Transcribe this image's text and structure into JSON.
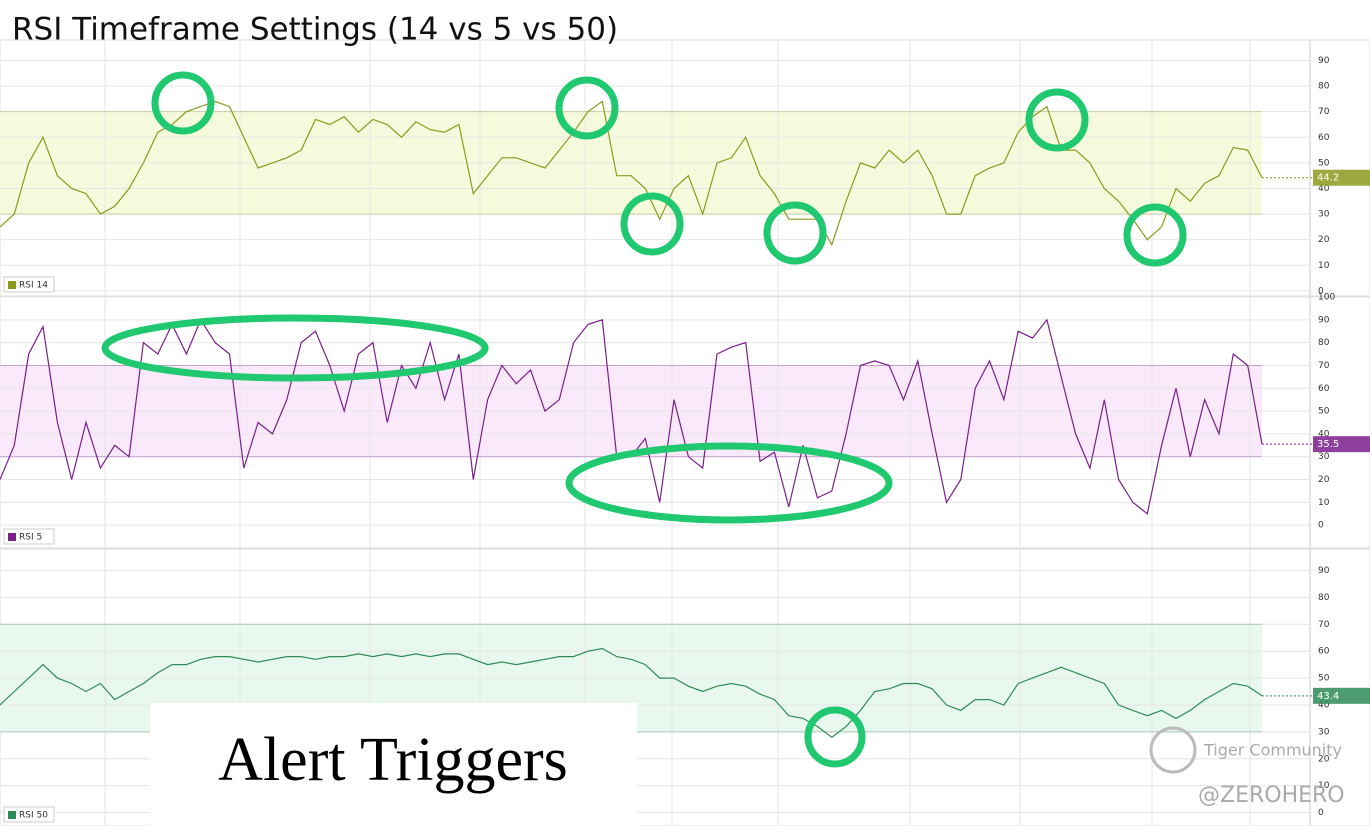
{
  "title": "RSI Timeframe Settings (14 vs 5 vs 50)",
  "annotation": "Alert Triggers",
  "watermark": [
    "Tiger Community",
    "@ZEROHERO"
  ],
  "chart_data": [
    {
      "type": "line",
      "ylim": [
        -2,
        98
      ],
      "yticks": [
        0,
        10,
        20,
        30,
        40,
        50,
        60,
        70,
        80,
        90
      ],
      "band": [
        30,
        70
      ],
      "band_color": "#f6fadd",
      "series": [
        {
          "name": "RSI 14",
          "color": "#8c9a1c",
          "last_value": 44.2,
          "values": [
            25,
            30,
            50,
            60,
            45,
            40,
            38,
            30,
            33,
            40,
            50,
            62,
            65,
            70,
            72,
            74,
            72,
            60,
            48,
            50,
            52,
            55,
            67,
            65,
            68,
            62,
            67,
            65,
            60,
            66,
            63,
            62,
            65,
            38,
            45,
            52,
            52,
            50,
            48,
            55,
            62,
            70,
            74,
            45,
            45,
            40,
            28,
            40,
            45,
            30,
            50,
            52,
            60,
            45,
            38,
            28,
            28,
            28,
            18,
            35,
            50,
            48,
            55,
            50,
            55,
            45,
            30,
            30,
            45,
            48,
            50,
            62,
            68,
            72,
            55,
            55,
            50,
            40,
            35,
            28,
            20,
            25,
            40,
            35,
            42,
            45,
            56,
            55,
            44.2
          ]
        }
      ]
    },
    {
      "type": "line",
      "ylim": [
        -10,
        100
      ],
      "yticks": [
        0,
        10,
        20,
        30,
        40,
        50,
        60,
        70,
        80,
        90,
        100
      ],
      "band": [
        30,
        70
      ],
      "band_color": "#f9e9fa",
      "series": [
        {
          "name": "RSI 5",
          "color": "#7b1f8c",
          "last_value": 35.5,
          "values": [
            20,
            35,
            75,
            87,
            45,
            20,
            45,
            25,
            35,
            30,
            80,
            75,
            88,
            75,
            90,
            80,
            75,
            25,
            45,
            40,
            55,
            80,
            85,
            70,
            50,
            75,
            80,
            45,
            70,
            60,
            80,
            55,
            75,
            20,
            55,
            70,
            62,
            68,
            50,
            55,
            80,
            88,
            90,
            30,
            30,
            38,
            10,
            55,
            30,
            25,
            75,
            78,
            80,
            28,
            32,
            8,
            35,
            12,
            15,
            40,
            70,
            72,
            70,
            55,
            72,
            40,
            10,
            20,
            60,
            72,
            55,
            85,
            82,
            90,
            65,
            40,
            25,
            55,
            20,
            10,
            5,
            35,
            60,
            30,
            55,
            40,
            75,
            70,
            35.5
          ]
        }
      ]
    },
    {
      "type": "line",
      "ylim": [
        -5,
        98
      ],
      "yticks": [
        0,
        10,
        20,
        30,
        40,
        50,
        60,
        70,
        80,
        90
      ],
      "band": [
        30,
        70
      ],
      "band_color": "#e9f8ef",
      "series": [
        {
          "name": "RSI 50",
          "color": "#2e8b57",
          "last_value": 43.4,
          "values": [
            40,
            45,
            50,
            55,
            50,
            48,
            45,
            48,
            42,
            45,
            48,
            52,
            55,
            55,
            57,
            58,
            58,
            57,
            56,
            57,
            58,
            58,
            57,
            58,
            58,
            59,
            58,
            59,
            58,
            59,
            58,
            59,
            59,
            57,
            55,
            56,
            55,
            56,
            57,
            58,
            58,
            60,
            61,
            58,
            57,
            55,
            50,
            50,
            47,
            45,
            47,
            48,
            47,
            44,
            42,
            36,
            35,
            32,
            28,
            32,
            38,
            45,
            46,
            48,
            48,
            46,
            40,
            38,
            42,
            42,
            40,
            48,
            50,
            52,
            54,
            52,
            50,
            48,
            40,
            38,
            36,
            38,
            35,
            38,
            42,
            45,
            48,
            47,
            43.4
          ]
        }
      ]
    }
  ]
}
